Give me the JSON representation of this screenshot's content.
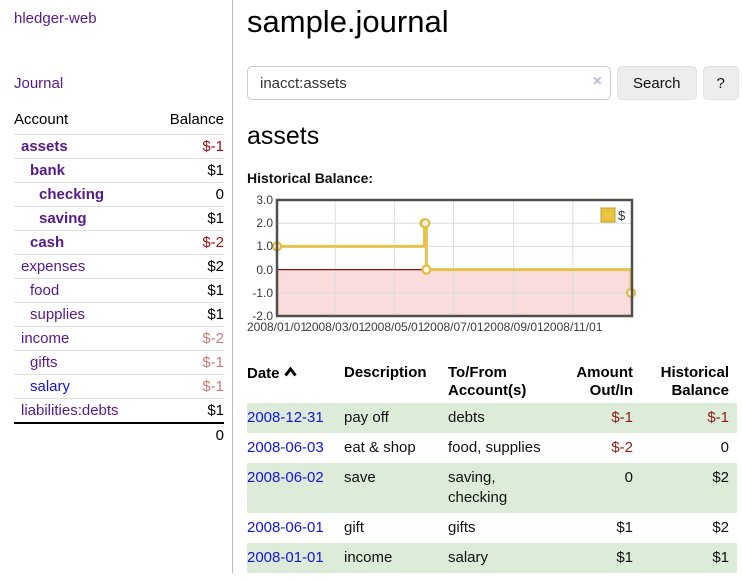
{
  "sidebar": {
    "app_title": "hledger-web",
    "nav_journal": "Journal",
    "accounts_table": {
      "col_account": "Account",
      "col_balance": "Balance",
      "rows": [
        {
          "name": "assets",
          "balance": "$-1",
          "level": 1,
          "bold": true,
          "link": "visited",
          "balance_muted": false
        },
        {
          "name": "bank",
          "balance": "$1",
          "level": 2,
          "bold": true,
          "link": "visited",
          "balance_muted": false
        },
        {
          "name": "checking",
          "balance": "0",
          "level": 3,
          "bold": true,
          "link": "visited",
          "balance_muted": false
        },
        {
          "name": "saving",
          "balance": "$1",
          "level": 3,
          "bold": true,
          "link": "visited",
          "balance_muted": false
        },
        {
          "name": "cash",
          "balance": "$-2",
          "level": 2,
          "bold": true,
          "link": "visited",
          "balance_muted": false
        },
        {
          "name": "expenses",
          "balance": "$2",
          "level": 1,
          "bold": false,
          "link": "visited",
          "balance_muted": false
        },
        {
          "name": "food",
          "balance": "$1",
          "level": 2,
          "bold": false,
          "link": "visited",
          "balance_muted": false
        },
        {
          "name": "supplies",
          "balance": "$1",
          "level": 2,
          "bold": false,
          "link": "visited",
          "balance_muted": false
        },
        {
          "name": "income",
          "balance": "$-2",
          "level": 1,
          "bold": false,
          "link": "visited",
          "balance_muted": true
        },
        {
          "name": "gifts",
          "balance": "$-1",
          "level": 2,
          "bold": false,
          "link": "visited",
          "balance_muted": true
        },
        {
          "name": "salary",
          "balance": "$-1",
          "level": 2,
          "bold": false,
          "link": "unvisited",
          "balance_muted": true
        },
        {
          "name": "liabilities:debts",
          "balance": "$1",
          "level": 1,
          "bold": false,
          "link": "visited",
          "balance_muted": false
        }
      ],
      "total": "0"
    }
  },
  "main": {
    "title": "sample.journal",
    "search": {
      "value": "inacct:assets",
      "clear_icon": "×",
      "button": "Search",
      "help_button": "?"
    },
    "account_heading": "assets",
    "chart_label": "Historical Balance:"
  },
  "chart_data": {
    "type": "line",
    "step": true,
    "title": "Historical Balance",
    "series": [
      {
        "name": "$",
        "points": [
          [
            "2008-01-01",
            1
          ],
          [
            "2008-06-01",
            2
          ],
          [
            "2008-06-02",
            2
          ],
          [
            "2008-06-03",
            0
          ],
          [
            "2008-12-31",
            -1
          ]
        ]
      }
    ],
    "x_range": [
      "2008-01-01",
      "2009-01-01"
    ],
    "x_ticks": [
      "2008/01/01",
      "2008/03/01",
      "2008/05/01",
      "2008/07/01",
      "2008/09/01",
      "2008/11/01"
    ],
    "y_ticks": [
      3.0,
      2.0,
      1.0,
      0.0,
      -1.0,
      -2.0
    ],
    "ylim": [
      -2,
      3
    ],
    "grid": true,
    "legend": "$",
    "legend_position": "top-right",
    "colors": {
      "line": "#e7c34d",
      "marker_stroke": "#e3bc42",
      "marker_fill": "#fdf8ec",
      "legend_square": "#eac43f",
      "legend_square_border": "#bfa02c",
      "negative_fill": "#fadcdc",
      "zero_line": "#8b1010",
      "grid": "#dddddd",
      "border": "#4f4f4f"
    }
  },
  "register": {
    "headers": {
      "date": "Date",
      "description": "Description",
      "account": "To/From Account(s)",
      "amount": "Amount Out/In",
      "balance": "Historical Balance"
    },
    "rows": [
      {
        "date": "2008-12-31",
        "description": "pay off",
        "accounts": "debts",
        "amount": "$-1",
        "balance": "$-1"
      },
      {
        "date": "2008-06-03",
        "description": "eat & shop",
        "accounts": "food, supplies",
        "amount": "$-2",
        "balance": "0"
      },
      {
        "date": "2008-06-02",
        "description": "save",
        "accounts": "saving, checking",
        "amount": "0",
        "balance": "$2"
      },
      {
        "date": "2008-06-01",
        "description": "gift",
        "accounts": "gifts",
        "amount": "$1",
        "balance": "$2"
      },
      {
        "date": "2008-01-01",
        "description": "income",
        "accounts": "salary",
        "amount": "$1",
        "balance": "$1"
      }
    ]
  }
}
